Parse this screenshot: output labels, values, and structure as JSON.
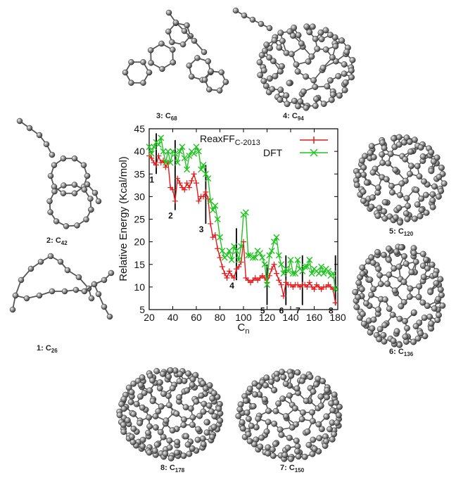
{
  "structures": [
    {
      "id": "s3",
      "num": "3:",
      "base": "C",
      "sub": "68"
    },
    {
      "id": "s4",
      "num": "4:",
      "base": "C",
      "sub": "94"
    },
    {
      "id": "s2",
      "num": "2:",
      "base": "C",
      "sub": "42"
    },
    {
      "id": "s5",
      "num": "5:",
      "base": "C",
      "sub": "120"
    },
    {
      "id": "s1",
      "num": "1:",
      "base": "C",
      "sub": "26"
    },
    {
      "id": "s6",
      "num": "6:",
      "base": "C",
      "sub": "136"
    },
    {
      "id": "s8",
      "num": "8:",
      "base": "C",
      "sub": "178"
    },
    {
      "id": "s7",
      "num": "7:",
      "base": "C",
      "sub": "150"
    }
  ],
  "chart_data": {
    "type": "line",
    "xlabel": {
      "base": "C",
      "sub": "n"
    },
    "ylabel": "Relative Energy (Kcal/mol)",
    "xlim": [
      20,
      180
    ],
    "ylim": [
      5,
      45
    ],
    "xticks": [
      20,
      40,
      60,
      80,
      100,
      120,
      140,
      160,
      180
    ],
    "yticks": [
      5,
      10,
      15,
      20,
      25,
      30,
      35,
      40,
      45
    ],
    "grid": false,
    "legend_position": "top-right",
    "series": [
      {
        "name": "ReaxFF",
        "name_sub": "C-2013",
        "color": "#e41a1c",
        "marker": "plus",
        "x": [
          20,
          22,
          24,
          26,
          28,
          30,
          32,
          34,
          36,
          38,
          40,
          42,
          44,
          46,
          48,
          50,
          52,
          54,
          56,
          58,
          60,
          62,
          64,
          66,
          68,
          70,
          72,
          74,
          76,
          78,
          80,
          82,
          84,
          86,
          88,
          90,
          92,
          94,
          96,
          98,
          100,
          102,
          104,
          106,
          108,
          110,
          112,
          114,
          116,
          118,
          120,
          122,
          124,
          126,
          128,
          130,
          132,
          134,
          136,
          138,
          140,
          142,
          144,
          146,
          148,
          150,
          152,
          154,
          156,
          158,
          160,
          162,
          164,
          166,
          168,
          170,
          172,
          174,
          176,
          178
        ],
        "values": [
          39,
          38.5,
          37.5,
          37,
          39,
          37.5,
          38,
          36.5,
          37.5,
          32,
          31.5,
          29,
          34,
          33,
          32,
          31.5,
          33,
          32,
          33.5,
          35,
          33,
          29,
          30,
          30,
          31,
          29.5,
          24,
          21,
          21.5,
          18.5,
          16.5,
          14.5,
          13,
          12,
          13.5,
          12.5,
          12,
          14,
          14.5,
          15.5,
          20,
          12,
          11.5,
          11,
          11.5,
          12,
          11.5,
          12,
          12.5,
          12,
          11,
          12.5,
          14,
          15,
          13,
          11.5,
          10.5,
          8,
          11,
          10.5,
          10.5,
          10,
          10.5,
          10.5,
          10,
          10.5,
          10.5,
          10,
          11,
          10,
          9.5,
          10.5,
          10,
          9.5,
          10,
          10,
          10.5,
          10,
          9.5,
          6.5
        ]
      },
      {
        "name": "DFT",
        "color": "#1fc41f",
        "marker": "x",
        "x": [
          20,
          22,
          24,
          26,
          28,
          30,
          32,
          34,
          36,
          38,
          40,
          42,
          44,
          46,
          48,
          50,
          52,
          54,
          56,
          58,
          60,
          62,
          64,
          66,
          68,
          70,
          72,
          74,
          76,
          78,
          80,
          82,
          84,
          86,
          88,
          90,
          92,
          94,
          96,
          98,
          100,
          102,
          104,
          106,
          108,
          110,
          112,
          114,
          116,
          118,
          120,
          122,
          124,
          126,
          128,
          130,
          132,
          134,
          136,
          138,
          140,
          142,
          144,
          146,
          148,
          150,
          152,
          154,
          156,
          158,
          160,
          162,
          164,
          166,
          168,
          170,
          172,
          174,
          176,
          178
        ],
        "values": [
          41,
          39.5,
          41,
          42,
          41.5,
          43,
          40,
          37.5,
          40,
          37.5,
          40,
          39.5,
          37.5,
          40,
          41,
          38.5,
          36,
          39,
          40,
          39.5,
          41,
          40,
          36,
          37,
          35,
          34,
          29,
          27,
          28,
          25,
          21,
          18,
          16.5,
          17,
          18,
          16,
          19,
          18,
          16,
          19,
          26,
          26.5,
          17,
          17,
          16.5,
          16.5,
          18,
          17.5,
          16.5,
          15,
          10.5,
          17,
          18,
          20,
          21,
          17,
          15,
          13,
          14,
          13.5,
          16,
          13,
          13,
          16,
          14,
          13.5,
          14.5,
          14.5,
          16,
          13,
          14,
          13.5,
          13,
          14.5,
          13,
          14,
          13.5,
          12.5,
          13,
          9.5
        ]
      }
    ],
    "markers": [
      {
        "x": 26,
        "y_bottom": 35,
        "y_top": 44,
        "label": "1"
      },
      {
        "x": 42,
        "y_bottom": 27,
        "y_top": 42.5,
        "label": "2"
      },
      {
        "x": 68,
        "y_bottom": 24,
        "y_top": 37,
        "label": "3"
      },
      {
        "x": 94,
        "y_bottom": 11.5,
        "y_top": 23,
        "label": "4"
      },
      {
        "x": 120,
        "y_bottom": 6,
        "y_top": 15,
        "label": "5"
      },
      {
        "x": 136,
        "y_bottom": 6,
        "y_top": 17,
        "label": "6"
      },
      {
        "x": 150,
        "y_bottom": 6,
        "y_top": 17,
        "label": "7"
      },
      {
        "x": 178,
        "y_bottom": 6,
        "y_top": 17,
        "label": "8"
      }
    ]
  }
}
